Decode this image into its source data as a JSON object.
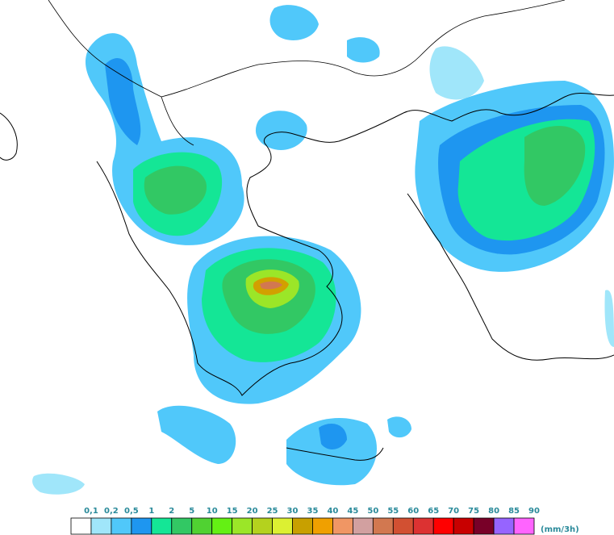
{
  "legend": {
    "labels": [
      "0,1",
      "0,2",
      "0,5",
      "1",
      "2",
      "5",
      "10",
      "15",
      "20",
      "25",
      "30",
      "35",
      "40",
      "45",
      "50",
      "55",
      "60",
      "65",
      "70",
      "75",
      "80",
      "85",
      "90"
    ],
    "colors": [
      "#ffffff",
      "#a0e6fa",
      "#50c8fa",
      "#1e96f0",
      "#14e696",
      "#32c864",
      "#50d232",
      "#64f014",
      "#9be628",
      "#b4d21e",
      "#dcf032",
      "#c8a000",
      "#f0a000",
      "#f09664",
      "#d2a0a0",
      "#d27850",
      "#d25032",
      "#dc3232",
      "#ff0000",
      "#c80000",
      "#780028",
      "#9664ff",
      "#ff64ff"
    ],
    "unit": "(mm/3h)"
  }
}
